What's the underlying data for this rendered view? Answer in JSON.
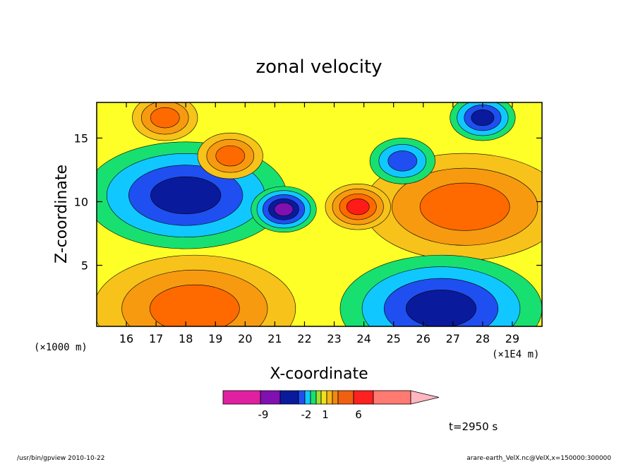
{
  "chart_data": {
    "type": "heatmap",
    "title": "zonal velocity",
    "xlabel": "X-coordinate",
    "ylabel": "Z-coordinate",
    "x_unit_left": "(×1000 m)",
    "x_unit_right": "(×1E4 m)",
    "x_ticks": [
      16,
      17,
      18,
      19,
      20,
      21,
      22,
      23,
      24,
      25,
      26,
      27,
      28,
      29
    ],
    "x_tick_labels": [
      "16",
      "17",
      "18",
      "19",
      "20",
      "21",
      "22",
      "23",
      "24",
      "25",
      "26",
      "27",
      "28",
      "29"
    ],
    "xlim": [
      15,
      30
    ],
    "y_ticks": [
      5,
      10,
      15
    ],
    "y_tick_labels": [
      "5",
      "10",
      "15"
    ],
    "ylim": [
      0.2,
      17.8
    ],
    "colorbar": {
      "labels": [
        "-9",
        "-2",
        "1",
        "6"
      ],
      "colors": [
        "#e020a0",
        "#8010b0",
        "#0a1a9c",
        "#1f4ff0",
        "#10c8ff",
        "#18e070",
        "#a0e030",
        "#f0e020",
        "#f7b418",
        "#f08a10",
        "#f06010",
        "#ff2020",
        "#ff7a70",
        "#ffb6c0"
      ]
    },
    "field": {
      "description_colors": [
        "#e020a0",
        "#8010b0",
        "#0a1a9c",
        "#1f4ff0",
        "#10c8ff",
        "#18e070",
        "#ffff28",
        "#f7c21a",
        "#f79a10",
        "#ff6a00",
        "#ff1c18"
      ],
      "features": [
        {
          "x": 18.0,
          "z": 10.5,
          "level": 2
        },
        {
          "x": 27.4,
          "z": 9.6,
          "level": 9
        },
        {
          "x": 18.3,
          "z": 1.6,
          "level": 9
        },
        {
          "x": 26.6,
          "z": 1.6,
          "level": 2
        },
        {
          "x": 21.3,
          "z": 9.4,
          "level": 1
        },
        {
          "x": 23.8,
          "z": 9.6,
          "level": 10
        },
        {
          "x": 17.3,
          "z": 16.6,
          "level": 9
        },
        {
          "x": 28.0,
          "z": 16.6,
          "level": 2
        },
        {
          "x": 25.3,
          "z": 13.2,
          "level": 3
        },
        {
          "x": 19.5,
          "z": 13.6,
          "level": 9
        }
      ]
    }
  },
  "annotations": {
    "time": "t=2950 s",
    "footer_left": "/usr/bin/gpview   2010-10-22",
    "footer_right": "arare-earth_VelX.nc@VelX,x=150000:300000"
  }
}
